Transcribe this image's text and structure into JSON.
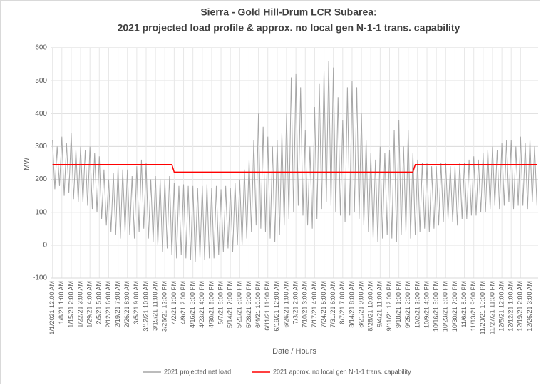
{
  "chart_data": {
    "type": "line",
    "title": "Sierra - Gold Hill-Drum LCR Subarea:",
    "subtitle": "2021 projected load profile & approx. no local gen N-1-1 trans. capability",
    "x_label": "Date / Hours",
    "y_label": "MW",
    "ylim": [
      -100,
      600
    ],
    "yticks": [
      -100,
      0,
      100,
      200,
      300,
      400,
      500,
      600
    ],
    "grid": true,
    "legend": "bottom",
    "categories": [
      "1/1/2021 12:00 AM",
      null,
      null,
      null,
      "1/8/21 1:00 AM",
      null,
      null,
      null,
      "1/15/21 2:00 AM",
      null,
      null,
      null,
      "1/22/21 3:00 AM",
      null,
      null,
      null,
      "1/29/21 4:00 AM",
      null,
      null,
      null,
      "2/5/21 5:00 AM",
      null,
      null,
      null,
      "2/12/21 6:00 AM",
      null,
      null,
      null,
      "2/19/21 7:00 AM",
      null,
      null,
      null,
      "2/26/21 8:00 AM",
      null,
      null,
      null,
      "3/5/21 9:00 AM",
      null,
      null,
      null,
      "3/12/21 10:00 AM",
      null,
      null,
      null,
      "3/19/21 11:00 AM",
      null,
      null,
      null,
      "3/26/21 12:00 PM",
      null,
      null,
      null,
      "4/2/21 1:00 PM",
      null,
      null,
      null,
      "4/9/21 2:00 PM",
      null,
      null,
      null,
      "4/16/21 3:00 PM",
      null,
      null,
      null,
      "4/23/21 4:00 PM",
      null,
      null,
      null,
      "4/30/21 5:00 PM",
      null,
      null,
      null,
      "5/7/21 6:00 PM",
      null,
      null,
      null,
      "5/14/21 7:00 PM",
      null,
      null,
      null,
      "5/21/21 8:00 PM",
      null,
      null,
      null,
      "5/28/21 9:00 PM",
      null,
      null,
      null,
      "6/4/21 10:00 PM",
      null,
      null,
      null,
      "6/11/21 11:00 PM",
      null,
      null,
      null,
      "6/19/21 12:00 AM",
      null,
      null,
      null,
      "6/26/21 1:00 AM",
      null,
      null,
      null,
      "7/3/21 2:00 AM",
      null,
      null,
      null,
      "7/10/21 3:00 AM",
      null,
      null,
      null,
      "7/17/21 4:00 AM",
      null,
      null,
      null,
      "7/24/21 5:00 AM",
      null,
      null,
      null,
      "7/31/21 6:00 AM",
      null,
      null,
      null,
      "8/7/21 7:00 AM",
      null,
      null,
      null,
      "8/14/21 8:00 AM",
      null,
      null,
      null,
      "8/21/21 9:00 AM",
      null,
      null,
      null,
      "8/28/21 10:00 AM",
      null,
      null,
      null,
      "9/4/21 11:00 AM",
      null,
      null,
      null,
      "9/11/21 12:00 PM",
      null,
      null,
      null,
      "9/18/21 1:00 PM",
      null,
      null,
      null,
      "9/25/21 2:00 PM",
      null,
      null,
      null,
      "10/2/21 3:00 PM",
      null,
      null,
      null,
      "10/9/21 4:00 PM",
      null,
      null,
      null,
      "10/16/21 5:00 PM",
      null,
      null,
      null,
      "10/23/21 6:00 PM",
      null,
      null,
      null,
      "10/30/21 7:00 PM",
      null,
      null,
      null,
      "11/6/21 8:00 PM",
      null,
      null,
      null,
      "11/13/21 9:00 PM",
      null,
      null,
      null,
      "11/20/21 10:00 PM",
      null,
      null,
      null,
      "11/27/21 11:00 PM",
      null,
      null,
      null,
      "12/5/21 12:00 AM",
      null,
      null,
      null,
      "12/12/21 1:00 AM",
      null,
      null,
      null,
      "12/19/21 2:00 AM",
      null,
      null,
      null,
      "12/26/21 3:00 AM",
      null,
      null,
      null
    ],
    "series": [
      {
        "name": "2021 projected net load",
        "color": "#a6a6a6",
        "values": [
          320,
          170,
          300,
          180,
          330,
          150,
          310,
          160,
          340,
          140,
          290,
          130,
          300,
          130,
          290,
          120,
          300,
          110,
          280,
          100,
          270,
          80,
          230,
          60,
          200,
          40,
          220,
          30,
          240,
          20,
          230,
          40,
          230,
          30,
          210,
          20,
          240,
          40,
          260,
          50,
          250,
          20,
          200,
          10,
          210,
          0,
          200,
          -20,
          200,
          -10,
          210,
          -30,
          190,
          -40,
          180,
          -30,
          185,
          -40,
          180,
          -45,
          180,
          -50,
          175,
          -40,
          180,
          -45,
          185,
          -40,
          175,
          -40,
          180,
          -30,
          170,
          -20,
          180,
          -10,
          175,
          -20,
          190,
          0,
          200,
          0,
          230,
          20,
          260,
          40,
          320,
          60,
          400,
          50,
          360,
          40,
          330,
          20,
          300,
          10,
          320,
          30,
          340,
          60,
          400,
          80,
          510,
          100,
          520,
          120,
          480,
          90,
          350,
          60,
          300,
          50,
          420,
          80,
          490,
          110,
          530,
          130,
          560,
          120,
          540,
          100,
          450,
          90,
          380,
          70,
          480,
          90,
          500,
          100,
          480,
          80,
          400,
          60,
          320,
          40,
          280,
          20,
          260,
          10,
          300,
          20,
          280,
          30,
          290,
          20,
          350,
          10,
          380,
          30,
          300,
          40,
          350,
          20,
          280,
          30,
          260,
          40,
          250,
          50,
          250,
          40,
          240,
          50,
          240,
          60,
          250,
          70,
          250,
          80,
          240,
          70,
          240,
          60,
          250,
          80,
          250,
          80,
          260,
          90,
          270,
          90,
          260,
          100,
          280,
          100,
          290,
          110,
          300,
          120,
          290,
          110,
          310,
          120,
          320,
          130,
          320,
          110,
          300,
          120,
          330,
          120,
          310,
          110,
          320,
          130,
          300,
          120
        ]
      },
      {
        "name": "2021 approx. no local gen N-1-1 trans. capability",
        "color": "#ff0000",
        "values": [
          245,
          245,
          245,
          245,
          245,
          245,
          245,
          245,
          245,
          245,
          245,
          245,
          245,
          245,
          245,
          245,
          245,
          245,
          245,
          245,
          245,
          245,
          245,
          245,
          245,
          245,
          245,
          245,
          245,
          245,
          245,
          245,
          245,
          245,
          245,
          245,
          245,
          245,
          245,
          245,
          245,
          245,
          245,
          245,
          245,
          245,
          245,
          245,
          245,
          245,
          245,
          245,
          222,
          222,
          222,
          222,
          222,
          222,
          222,
          222,
          222,
          222,
          222,
          222,
          222,
          222,
          222,
          222,
          222,
          222,
          222,
          222,
          222,
          222,
          222,
          222,
          222,
          222,
          222,
          222,
          222,
          222,
          222,
          222,
          222,
          222,
          222,
          222,
          222,
          222,
          222,
          222,
          222,
          222,
          222,
          222,
          222,
          222,
          222,
          222,
          222,
          222,
          222,
          222,
          222,
          222,
          222,
          222,
          222,
          222,
          222,
          222,
          222,
          222,
          222,
          222,
          222,
          222,
          222,
          222,
          222,
          222,
          222,
          222,
          222,
          222,
          222,
          222,
          222,
          222,
          222,
          222,
          222,
          222,
          222,
          222,
          222,
          222,
          222,
          222,
          222,
          222,
          222,
          222,
          222,
          222,
          222,
          222,
          222,
          222,
          222,
          222,
          222,
          222,
          222,
          245,
          245,
          245,
          245,
          245,
          245,
          245,
          245,
          245,
          245,
          245,
          245,
          245,
          245,
          245,
          245,
          245,
          245,
          245,
          245,
          245,
          245,
          245,
          245,
          245,
          245,
          245,
          245,
          245,
          245,
          245,
          245,
          245,
          245,
          245,
          245,
          245,
          245,
          245,
          245,
          245,
          245,
          245,
          245,
          245,
          245,
          245,
          245,
          245,
          245,
          245,
          245,
          245
        ]
      }
    ]
  }
}
